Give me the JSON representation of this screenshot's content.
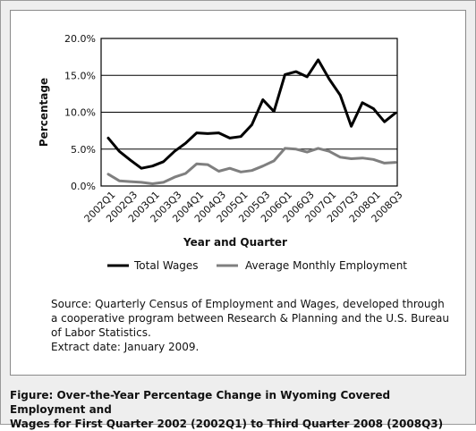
{
  "chart_data": {
    "type": "line",
    "title": "",
    "xlabel": "Year and Quarter",
    "ylabel": "Percentage",
    "ylim": [
      0,
      20
    ],
    "yticks": [
      "0.0%",
      "5.0%",
      "10.0%",
      "15.0%",
      "20.0%"
    ],
    "grid": "horizontal",
    "legend_position": "bottom",
    "x": [
      "2002Q1",
      "2002Q2",
      "2002Q3",
      "2002Q4",
      "2003Q1",
      "2003Q2",
      "2003Q3",
      "2003Q4",
      "2004Q1",
      "2004Q2",
      "2004Q3",
      "2004Q4",
      "2005Q1",
      "2005Q2",
      "2005Q3",
      "2005Q4",
      "2006Q1",
      "2006Q2",
      "2006Q3",
      "2006Q4",
      "2007Q1",
      "2007Q2",
      "2007Q3",
      "2007Q4",
      "2008Q1",
      "2008Q2",
      "2008Q3"
    ],
    "x_tick_labels": [
      "2002Q1",
      "2002Q3",
      "2003Q1",
      "2003Q3",
      "2004Q1",
      "2004Q3",
      "2005Q1",
      "2005Q3",
      "2006Q1",
      "2006Q3",
      "2007Q1",
      "2007Q3",
      "2008Q1",
      "2008Q3"
    ],
    "series": [
      {
        "name": "Total Wages",
        "color": "#000000",
        "values": [
          6.5,
          4.7,
          3.5,
          2.4,
          2.7,
          3.3,
          4.7,
          5.8,
          7.2,
          7.1,
          7.2,
          6.5,
          6.7,
          8.3,
          11.7,
          10.1,
          15.1,
          15.5,
          14.8,
          17.1,
          14.5,
          12.3,
          8.1,
          11.3,
          10.5,
          8.7,
          9.9
        ]
      },
      {
        "name": "Average Monthly Employment",
        "color": "#7f7f7f",
        "values": [
          1.6,
          0.7,
          0.6,
          0.5,
          0.3,
          0.5,
          1.2,
          1.7,
          3.0,
          2.9,
          2.0,
          2.4,
          1.9,
          2.1,
          2.7,
          3.4,
          5.1,
          5.0,
          4.6,
          5.1,
          4.7,
          3.9,
          3.7,
          3.8,
          3.6,
          3.1,
          3.2
        ]
      }
    ]
  },
  "source_lines": [
    "Source: Quarterly Census of Employment and Wages, developed through",
    "a cooperative program between Research & Planning and the U.S. Bureau",
    "of Labor Statistics.",
    "Extract date: January 2009."
  ],
  "caption_lines": [
    "Figure: Over-the-Year Percentage Change in Wyoming Covered Employment and",
    "Wages for First Quarter 2002 (2002Q1) to Third Quarter 2008 (2008Q3)"
  ]
}
